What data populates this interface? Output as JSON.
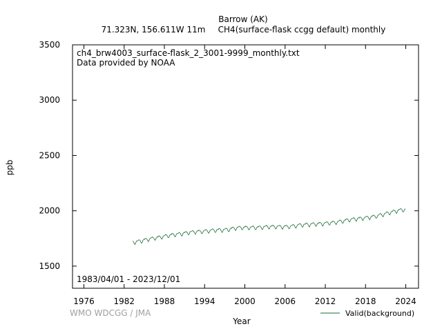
{
  "header": {
    "station": "Barrow (AK)",
    "location": "71.323N, 156.611W 11m",
    "parameter": "CH4(surface-flask ccgg default) monthly"
  },
  "annotations": {
    "filename": "ch4_brw4003_surface-flask_2_3001-9999_monthly.txt",
    "provider": "Data provided by NOAA",
    "date_range": "1983/04/01 - 2023/12/01",
    "credit": "WMO WDCGG / JMA"
  },
  "colors": {
    "series": "#1e6b3a",
    "axis": "#000000",
    "credit": "#a0a0a0"
  },
  "chart_data": {
    "type": "line",
    "xlabel": "Year",
    "ylabel": "ppb",
    "xlim": [
      1974.3,
      2025.9
    ],
    "ylim": [
      1300,
      3500
    ],
    "xticks": [
      1976,
      1982,
      1988,
      1994,
      2000,
      2006,
      2012,
      2018,
      2024
    ],
    "yticks": [
      1500,
      2000,
      2500,
      3000,
      3500
    ],
    "grid": false,
    "legend_position": "bottom-right",
    "series": [
      {
        "name": "Valid(background)",
        "x_start": "1983-04",
        "x_end": "2023-12",
        "annual_mean_ppb": [
          [
            1983,
            1717
          ],
          [
            1984,
            1727
          ],
          [
            1985,
            1742
          ],
          [
            1986,
            1752
          ],
          [
            1987,
            1763
          ],
          [
            1988,
            1775
          ],
          [
            1989,
            1784
          ],
          [
            1990,
            1792
          ],
          [
            1991,
            1802
          ],
          [
            1992,
            1810
          ],
          [
            1993,
            1812
          ],
          [
            1994,
            1818
          ],
          [
            1995,
            1824
          ],
          [
            1996,
            1826
          ],
          [
            1997,
            1830
          ],
          [
            1998,
            1843
          ],
          [
            1999,
            1848
          ],
          [
            2000,
            1848
          ],
          [
            2001,
            1848
          ],
          [
            2002,
            1850
          ],
          [
            2003,
            1856
          ],
          [
            2004,
            1856
          ],
          [
            2005,
            1855
          ],
          [
            2006,
            1856
          ],
          [
            2007,
            1864
          ],
          [
            2008,
            1872
          ],
          [
            2009,
            1876
          ],
          [
            2010,
            1880
          ],
          [
            2011,
            1883
          ],
          [
            2012,
            1889
          ],
          [
            2013,
            1895
          ],
          [
            2014,
            1905
          ],
          [
            2015,
            1918
          ],
          [
            2016,
            1926
          ],
          [
            2017,
            1932
          ],
          [
            2018,
            1940
          ],
          [
            2019,
            1950
          ],
          [
            2020,
            1965
          ],
          [
            2021,
            1982
          ],
          [
            2022,
            1997
          ],
          [
            2023,
            2009
          ]
        ],
        "seasonal_amplitude_ppb": 22
      }
    ]
  }
}
